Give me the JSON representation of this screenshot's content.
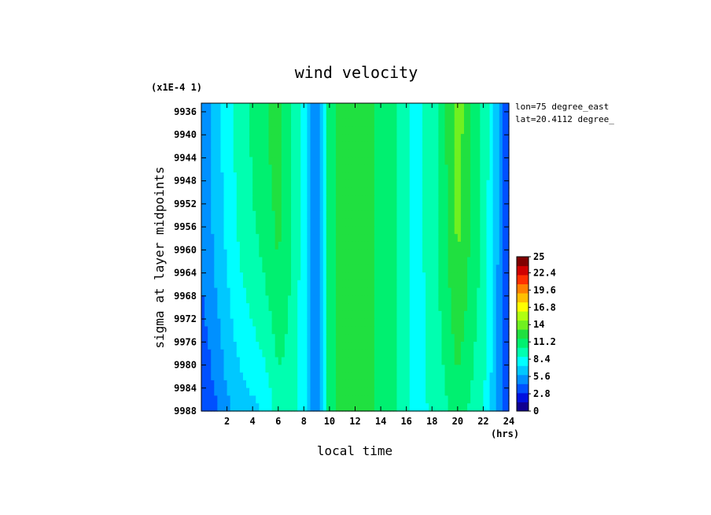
{
  "chart_data": {
    "type": "heatmap",
    "title": "wind velocity",
    "xlabel": "local time",
    "ylabel": "sigma at layer midpoints",
    "x_unit": "(hrs)",
    "y_multiplier": "(x1E-4 1)",
    "annotations": [
      "lon=75 degree_east",
      "lat=20.4112 degree_"
    ],
    "x_ticks": [
      "2",
      "4",
      "6",
      "8",
      "10",
      "12",
      "14",
      "16",
      "18",
      "20",
      "22",
      "24"
    ],
    "y_ticks": [
      "9936",
      "9940",
      "9944",
      "9948",
      "9952",
      "9956",
      "9960",
      "9964",
      "9968",
      "9972",
      "9976",
      "9980",
      "9984",
      "9988"
    ],
    "xlim": [
      0,
      24
    ],
    "ylim": [
      9934.5,
      9988
    ],
    "y_reversed": true,
    "colorbar": {
      "ticks": [
        "0",
        "2.8",
        "5.6",
        "8.4",
        "11.2",
        "14",
        "16.8",
        "19.6",
        "22.4",
        "25"
      ],
      "range": [
        0,
        25
      ]
    },
    "profile_x_hours": [
      0,
      0.5,
      1,
      2,
      3,
      4,
      5,
      6,
      7,
      8,
      8.5,
      9,
      9.5,
      10,
      11,
      12,
      13,
      14,
      15,
      16,
      17,
      18,
      19,
      20,
      21,
      22,
      22.5,
      23,
      23.5,
      24
    ],
    "profile_top_values": [
      5.0,
      5.5,
      6.5,
      8.0,
      9.5,
      10.5,
      11.5,
      12.5,
      10.5,
      8.0,
      6.0,
      4.5,
      7.5,
      11.5,
      12.0,
      12.2,
      12.0,
      11.5,
      10.5,
      9.0,
      8.5,
      9.5,
      11.5,
      14.0,
      12.0,
      10.0,
      8.5,
      6.5,
      4.5,
      3.0
    ],
    "profile_bottom_values": [
      3.0,
      3.5,
      4.0,
      5.5,
      6.5,
      7.0,
      7.5,
      9.5,
      9.5,
      8.0,
      6.0,
      4.5,
      7.5,
      11.5,
      12.0,
      12.2,
      12.0,
      11.5,
      10.5,
      9.0,
      8.5,
      9.0,
      10.0,
      11.0,
      10.0,
      9.0,
      7.5,
      6.0,
      4.0,
      2.8
    ]
  },
  "colors": {
    "scale": [
      "#100090",
      "#0010e0",
      "#0050ff",
      "#0090ff",
      "#00c8ff",
      "#00ffff",
      "#00ffb0",
      "#00f070",
      "#20e040",
      "#70f020",
      "#b0ff10",
      "#ffff00",
      "#ffc000",
      "#ff8000",
      "#ff3000",
      "#d00000",
      "#800000"
    ]
  }
}
